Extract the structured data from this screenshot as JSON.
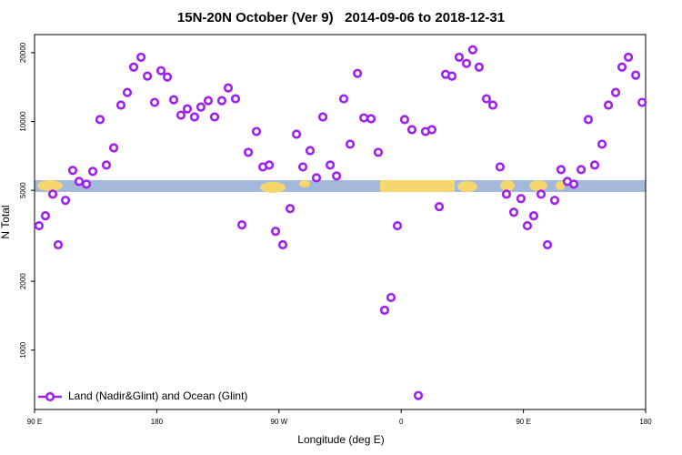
{
  "chart_data": {
    "type": "scatter",
    "title": "15N-20N October (Ver 9)   2014-09-06 to 2018-12-31",
    "xlabel": "Longitude (deg E)",
    "ylabel": "N Total",
    "log_y": true,
    "legend": "lower left",
    "xlim": [
      90,
      540
    ],
    "ylim": [
      550,
      24000
    ],
    "xticks": [
      {
        "value": 90,
        "label": "90 E"
      },
      180,
      {
        "value": 270,
        "label": "90 W"
      },
      {
        "value": 360,
        "label": "0"
      },
      {
        "value": 450,
        "label": "90 E"
      },
      {
        "value": 540,
        "label": "180"
      }
    ],
    "yticks": [
      1000,
      2000,
      5000,
      10000,
      20000
    ],
    "x": [
      93.3,
      98.0,
      103.4,
      107.4,
      112.8,
      118.1,
      122.8,
      128.2,
      132.9,
      138.2,
      142.9,
      148.3,
      153.6,
      158.3,
      163.0,
      168.4,
      173.1,
      178.4,
      183.1,
      187.8,
      192.5,
      197.8,
      202.5,
      207.8,
      212.5,
      217.9,
      222.6,
      227.9,
      232.6,
      238.0,
      242.7,
      247.4,
      253.4,
      258.1,
      262.8,
      267.5,
      272.8,
      278.2,
      282.9,
      287.6,
      292.9,
      297.6,
      302.3,
      307.7,
      312.4,
      317.7,
      322.4,
      327.8,
      332.5,
      337.8,
      343.1,
      347.8,
      352.5,
      357.2,
      362.5,
      367.9,
      372.6,
      377.9,
      382.6,
      388.0,
      392.7,
      397.4,
      402.7,
      408.1,
      412.7,
      417.4,
      422.8,
      427.5,
      432.8,
      437.5,
      442.9,
      448.2,
      452.9,
      457.6,
      463.0,
      467.7,
      473.0,
      477.7,
      482.4,
      487.1,
      492.5,
      497.8,
      502.5,
      507.9,
      512.6,
      517.9,
      522.6,
      527.3,
      532.7,
      537.4
    ],
    "series": [
      {
        "name": "Land (Nadir&Glint) and Ocean (Glint)",
        "color": "#a020f0",
        "values": [
          3500,
          3870,
          4810,
          2890,
          4520,
          6110,
          5470,
          5320,
          6050,
          10200,
          6450,
          7670,
          11800,
          13400,
          17300,
          19100,
          15800,
          12120,
          16680,
          15650,
          12450,
          10660,
          11360,
          10470,
          11570,
          12340,
          10470,
          12340,
          14020,
          12570,
          3530,
          7330,
          9040,
          6330,
          6450,
          3310,
          2890,
          4160,
          8800,
          6330,
          7460,
          5675,
          10470,
          6450,
          5780,
          12570,
          7960,
          16230,
          10370,
          10280,
          7330,
          1495,
          1699,
          3500,
          10200,
          9210,
          633,
          9040,
          9210,
          4240,
          16080,
          15800,
          19100,
          17950,
          20580,
          17300,
          12570,
          11800,
          6330,
          4810,
          4010,
          4600,
          3500,
          3870,
          4810,
          2890,
          4520,
          6160,
          5470,
          5320,
          6160,
          10200,
          6450,
          7960,
          11800,
          13400,
          17300,
          19100,
          15940,
          12120
        ]
      }
    ]
  }
}
